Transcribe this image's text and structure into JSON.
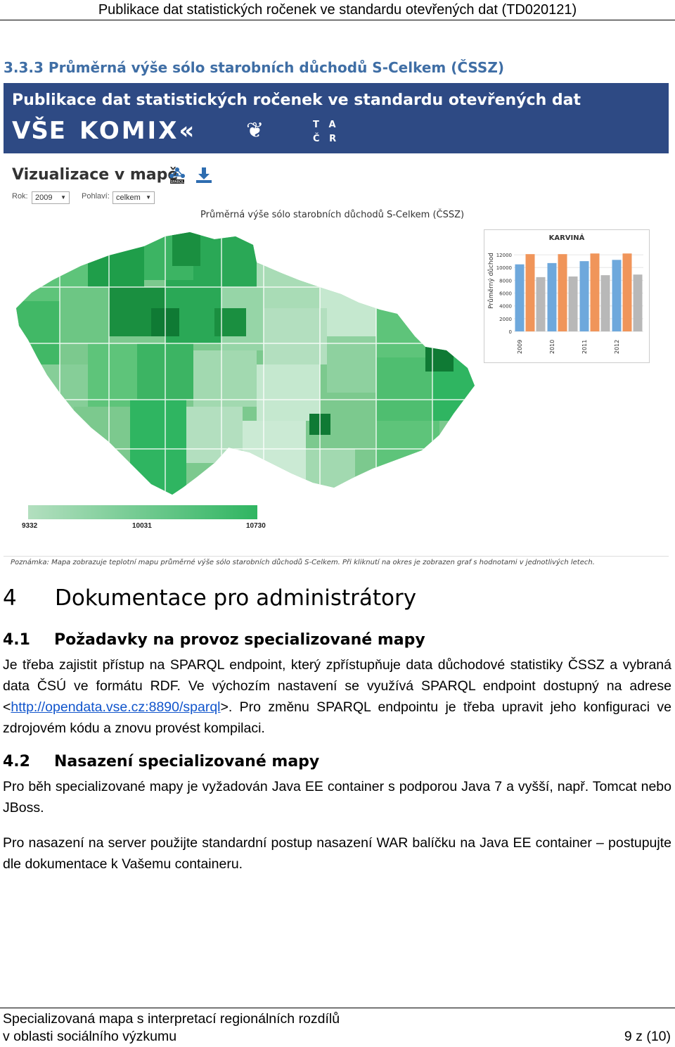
{
  "header": {
    "title": "Publikace dat statistických ročenek ve standardu otevřených dat (TD020121)"
  },
  "section": {
    "number": "3.3.3",
    "title": "Průměrná výše sólo starobních důchodů S-Celkem (ČSSZ)"
  },
  "screenshot": {
    "banner_title": "Publikace dat statistických ročenek ve standardu otevřených dat",
    "logos": {
      "vse": "VŠE",
      "komix": "KOMIX«",
      "tacr_t": "T",
      "tacr_a": "A",
      "tacr_c": "Č",
      "tacr_r": "R"
    },
    "viz_title": "Vizualizace v mapě",
    "sparql_badge": "SPARQL",
    "year_label": "Rok:",
    "year_value": "2009",
    "gender_label": "Pohlaví:",
    "gender_value": "celkem",
    "map_title": "Průměrná výše sólo starobních důchodů S-Celkem (ČSSZ)",
    "legend": {
      "min": "9332",
      "mid": "10031",
      "max": "10730"
    },
    "note": "Poznámka: Mapa zobrazuje teplotní mapu průměrné výše sólo starobních důchodů S-Celkem. Při kliknutí na okres je zobrazen graf s hodnotami v jednotlivých letech."
  },
  "chart_data": {
    "type": "bar",
    "title": "KARVINÁ",
    "ylabel": "Průměrný důchod",
    "categories": [
      "2009",
      "2010",
      "2011",
      "2012"
    ],
    "yticks": [
      "0",
      "2000",
      "4000",
      "6000",
      "8000",
      "10000",
      "12000"
    ],
    "ylim": [
      0,
      13000
    ],
    "series": [
      {
        "values": [
          10500,
          10700,
          11000,
          11200
        ],
        "color": "#6ea8dc"
      },
      {
        "values": [
          12100,
          12100,
          12200,
          12200
        ],
        "color": "#f0955a"
      },
      {
        "values": [
          8500,
          8600,
          8800,
          8900
        ],
        "color": "#b8b8b8"
      }
    ]
  },
  "chapter": {
    "number": "4",
    "title": "Dokumentace pro administrátory"
  },
  "s41": {
    "number": "4.1",
    "title": "Požadavky na provoz specializované mapy",
    "p_before": "Je třeba zajistit přístup na SPARQL endpoint, který zpřístupňuje data důchodové statistiky ČSSZ a vybraná data ČSÚ ve formátu RDF. Ve výchozím nastavení se využívá SPARQL endpoint dostupný na adrese <",
    "link": "http://opendata.vse.cz:8890/sparql",
    "p_after": ">. Pro změnu SPARQL endpointu je třeba upravit jeho konfiguraci ve zdrojovém kódu a znovu provést kompilaci."
  },
  "s42": {
    "number": "4.2",
    "title": "Nasazení specializované mapy",
    "p1": "Pro běh specializované mapy je vyžadován Java EE container s podporou Java 7 a vyšší, např. Tomcat nebo JBoss.",
    "p2": "Pro nasazení na server použijte standardní postup nasazení WAR balíčku na Java EE container – postupujte dle dokumentace k Vašemu containeru."
  },
  "footer": {
    "line1": "Specializovaná mapa s interpretací regionálních rozdílů",
    "line2": "v oblasti sociálního výzkumu",
    "page": "9 z (10)"
  }
}
